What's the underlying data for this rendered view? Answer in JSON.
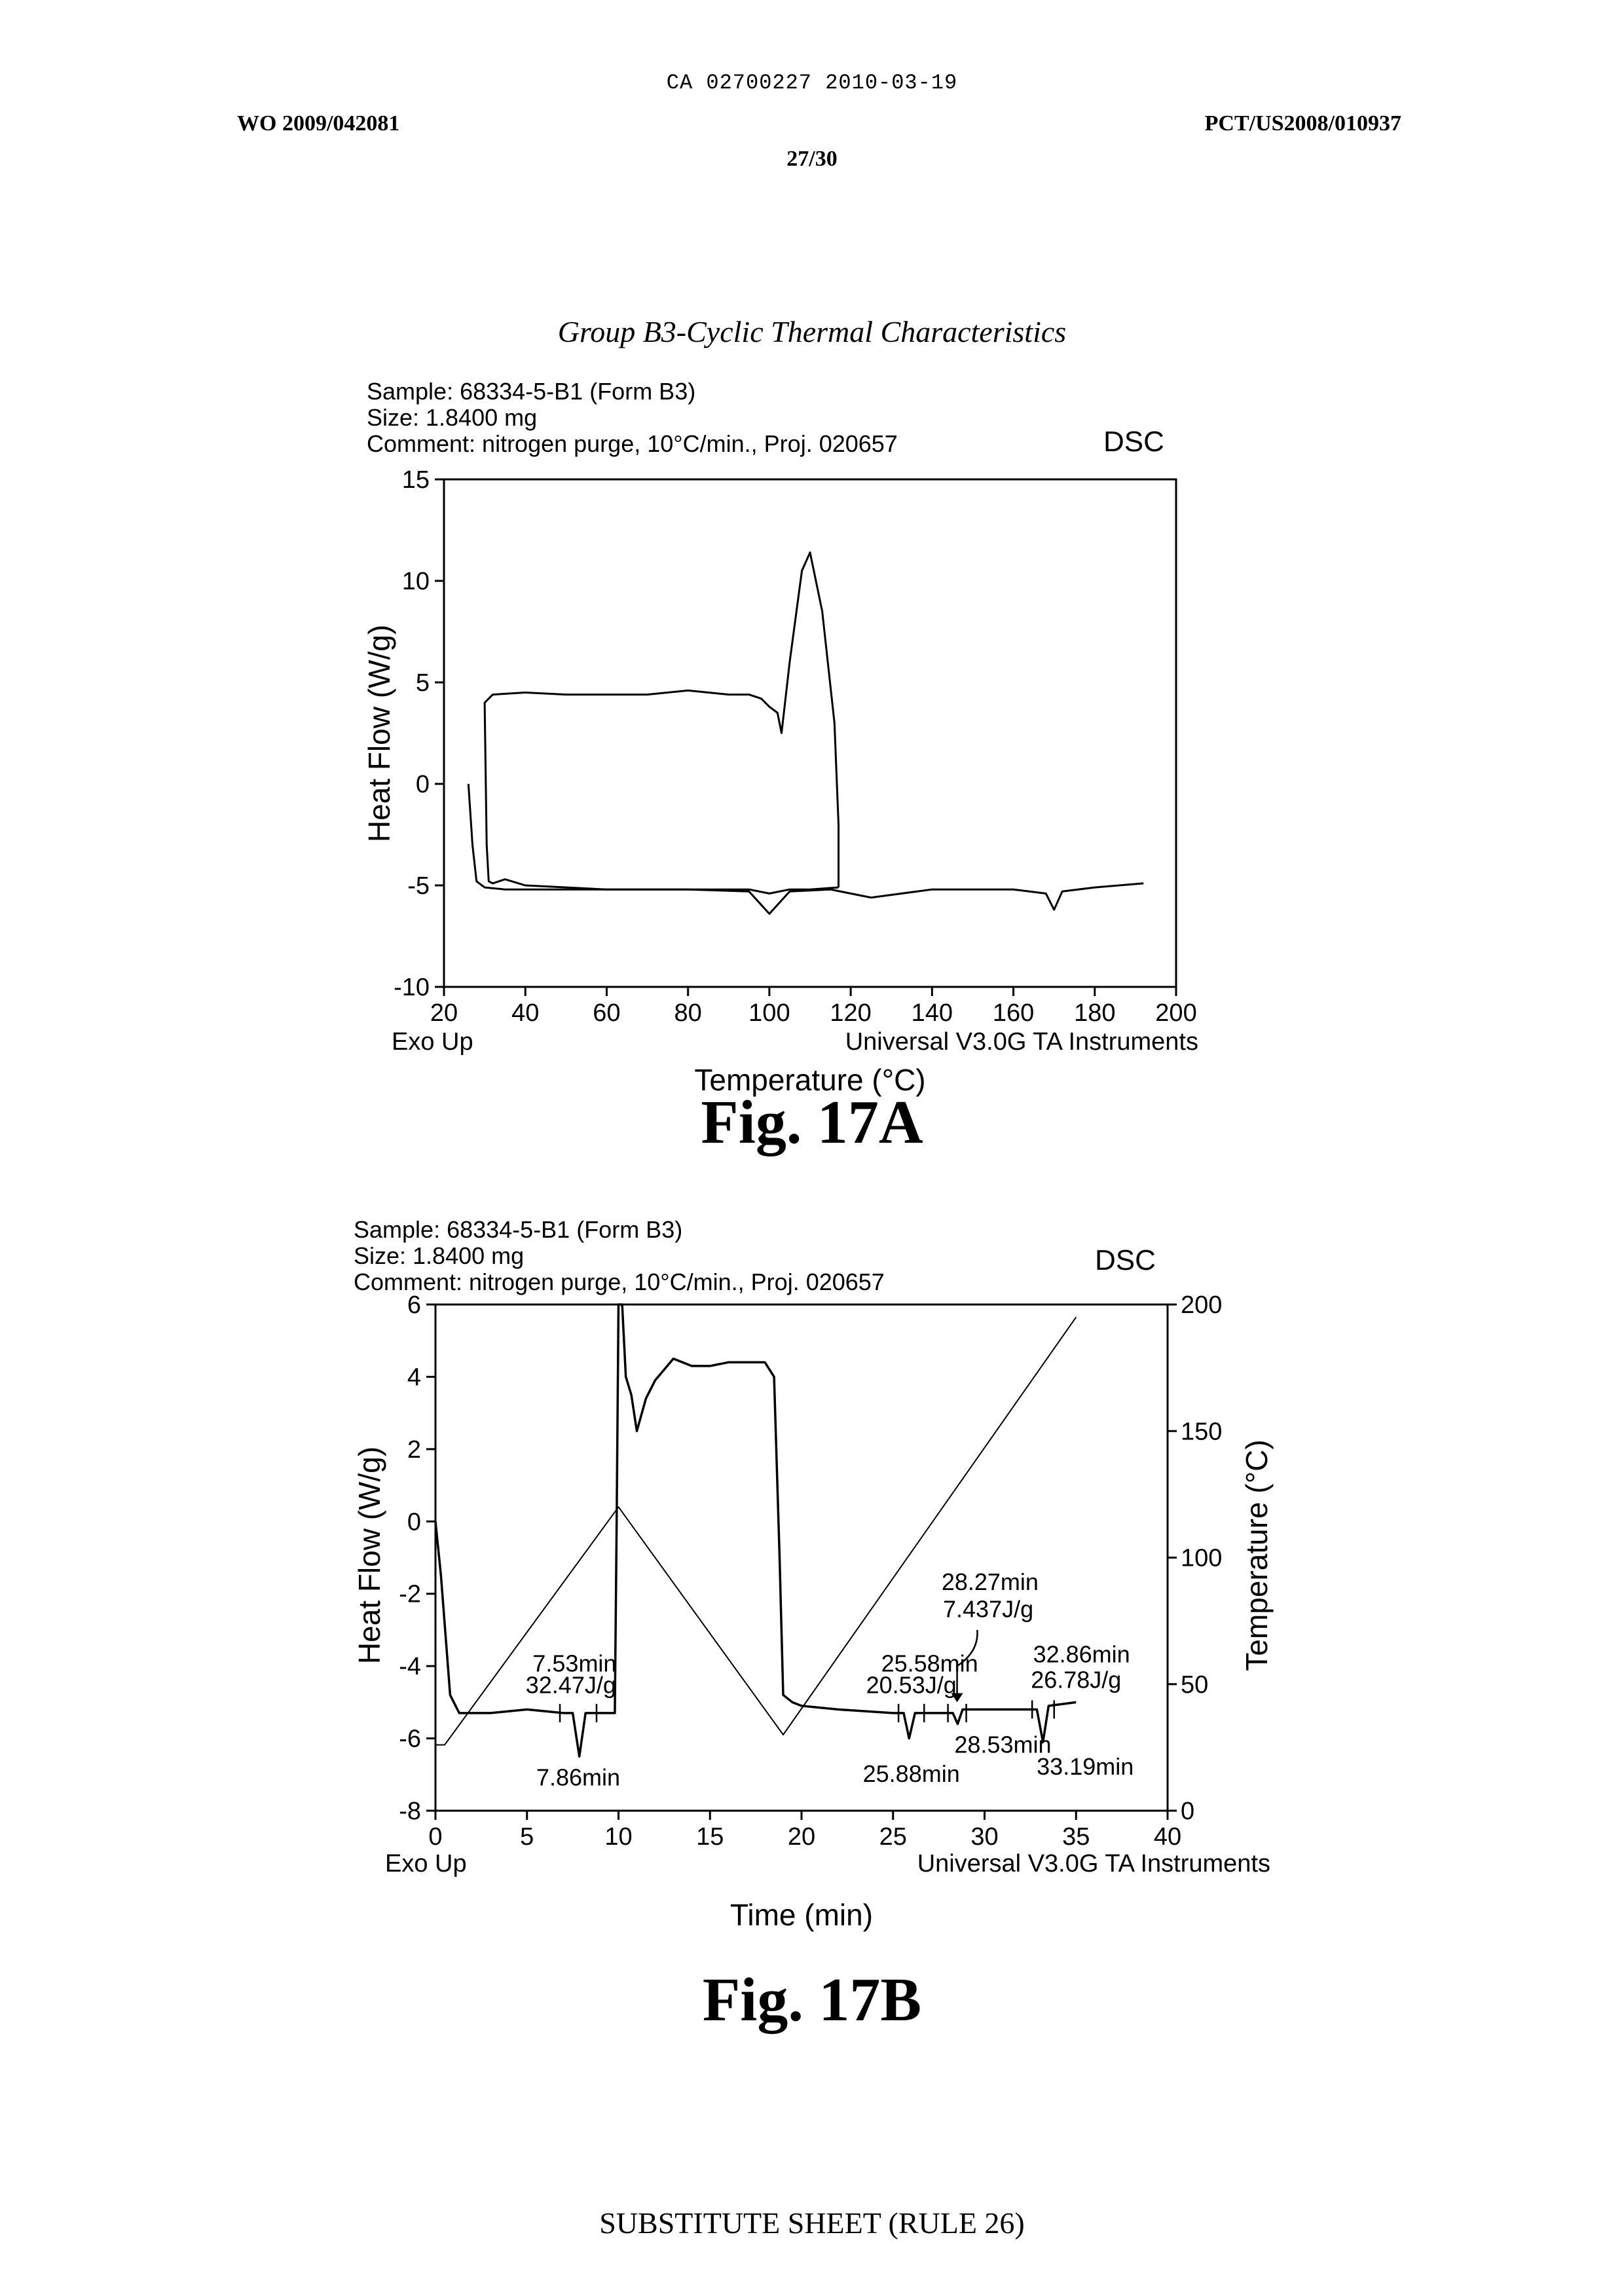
{
  "header": {
    "ca_number": "CA 02700227 2010-03-19",
    "wo_number": "WO 2009/042081",
    "pct_number": "PCT/US2008/010937",
    "page": "27/30"
  },
  "section_title": "Group B3-Cyclic Thermal Characteristics",
  "figA": {
    "sample": "Sample: 68334-5-B1 (Form B3)",
    "size": "Size:  1.8400 mg",
    "comment": "Comment: nitrogen purge, 10°C/min., Proj. 020657",
    "method": "DSC",
    "exo": "Exo Up",
    "instrument": "Universal V3.0G TA Instruments",
    "caption": "Fig. 17A"
  },
  "figB": {
    "sample": "Sample: 68334-5-B1 (Form B3)",
    "size": "Size:  1.8400 mg",
    "comment": "Comment: nitrogen purge, 10°C/min., Proj. 020657",
    "method": "DSC",
    "exo": "Exo Up",
    "instrument": "Universal V3.0G TA Instruments",
    "caption": "Fig. 17B"
  },
  "footer": "SUBSTITUTE SHEET (RULE 26)",
  "chart_data": [
    {
      "type": "line",
      "xlabel": "Temperature (°C)",
      "ylabel": "Heat Flow (W/g)",
      "xlim": [
        20,
        200
      ],
      "ylim": [
        -10,
        15
      ],
      "x_ticks": [
        20,
        40,
        60,
        80,
        100,
        120,
        140,
        160,
        180,
        200
      ],
      "y_ticks": [
        -10,
        -5,
        0,
        5,
        10,
        15
      ],
      "series": [
        {
          "x": [
            26,
            27,
            28,
            30,
            35,
            40,
            60,
            80,
            95,
            100,
            105,
            115,
            125,
            140,
            160,
            168,
            170,
            172,
            180,
            192
          ],
          "y": [
            0,
            -3,
            -4.8,
            -5.1,
            -5.2,
            -5.2,
            -5.2,
            -5.2,
            -5.3,
            -6.4,
            -5.3,
            -5.2,
            -5.6,
            -5.2,
            -5.2,
            -5.4,
            -6.2,
            -5.3,
            -5.1,
            -4.9
          ]
        },
        {
          "x": [
            117,
            117,
            116,
            113,
            110,
            108,
            105,
            103,
            102,
            100,
            98,
            95,
            90,
            80,
            70,
            60,
            50,
            40,
            32,
            30,
            30.5,
            31,
            32,
            35,
            40,
            60,
            80,
            95,
            100,
            105,
            110,
            117
          ],
          "y": [
            -5.1,
            -2,
            3,
            8.5,
            11.4,
            10.5,
            6,
            2.5,
            3.5,
            3.8,
            4.2,
            4.4,
            4.4,
            4.6,
            4.4,
            4.4,
            4.4,
            4.5,
            4.4,
            4,
            -3,
            -4.8,
            -4.9,
            -4.7,
            -5,
            -5.2,
            -5.2,
            -5.2,
            -5.4,
            -5.2,
            -5.2,
            -5.1
          ]
        }
      ]
    },
    {
      "type": "line",
      "xlabel": "Time (min)",
      "ylabel": "Heat Flow (W/g)",
      "y2label": "Temperature (°C)",
      "xlim": [
        0,
        40
      ],
      "ylim": [
        -8,
        6
      ],
      "y2lim": [
        0,
        200
      ],
      "x_ticks": [
        0,
        5,
        10,
        15,
        20,
        25,
        30,
        35,
        40
      ],
      "y_ticks": [
        -8,
        -6,
        -4,
        -2,
        0,
        2,
        4,
        6
      ],
      "y2_ticks": [
        0,
        50,
        100,
        150,
        200
      ],
      "series": [
        {
          "name": "heat_flow",
          "x": [
            0,
            0.3,
            0.8,
            1.3,
            2,
            3,
            5,
            7,
            7.5,
            7.86,
            8.2,
            9,
            9.8,
            9.9,
            10,
            10.2,
            10.4,
            10.7,
            11,
            11.5,
            12,
            13,
            14,
            15,
            16,
            17,
            18,
            18.5,
            18.8,
            19,
            19.5,
            20,
            22,
            25,
            25.58,
            25.88,
            26.2,
            28.27,
            28.53,
            28.8,
            30,
            32.86,
            33.19,
            33.5,
            35
          ],
          "y": [
            0,
            -1.5,
            -4.8,
            -5.3,
            -5.3,
            -5.3,
            -5.2,
            -5.3,
            -5.3,
            -6.5,
            -5.3,
            -5.3,
            -5.3,
            0,
            6,
            7,
            4,
            3.5,
            2.5,
            3.4,
            3.9,
            4.5,
            4.3,
            4.3,
            4.4,
            4.4,
            4.4,
            4,
            -1,
            -4.8,
            -5,
            -5.1,
            -5.2,
            -5.3,
            -5.3,
            -6,
            -5.3,
            -5.3,
            -5.6,
            -5.2,
            -5.2,
            -5.2,
            -6.1,
            -5.1,
            -5
          ]
        },
        {
          "name": "temperature",
          "x": [
            0,
            0.5,
            10,
            19,
            35
          ],
          "y2": [
            26,
            26,
            120,
            30,
            195
          ]
        }
      ],
      "annotations": [
        "7.53min",
        "32.47J/g",
        "7.86min",
        "25.58min",
        "20.53J/g",
        "25.88min",
        "28.27min",
        "7.437J/g",
        "28.53min",
        "32.86min",
        "26.78J/g",
        "33.19min"
      ]
    }
  ]
}
